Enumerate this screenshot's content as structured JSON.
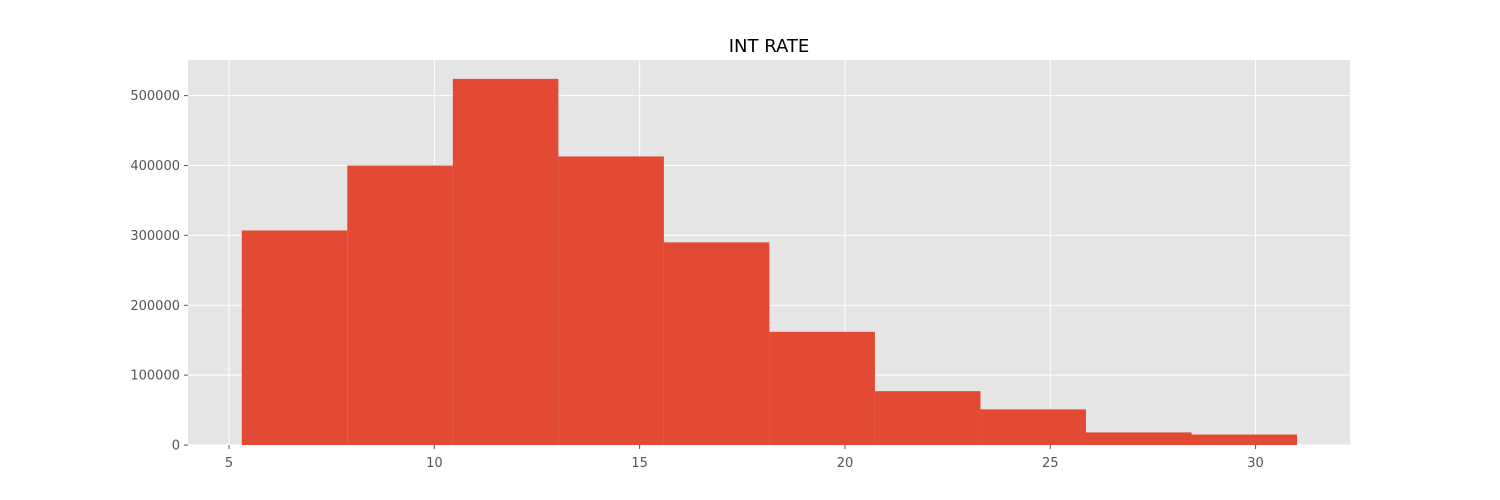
{
  "chart_data": {
    "type": "bar",
    "title": "INT RATE",
    "xlabel": "",
    "ylabel": "",
    "xlim": [
      4.0,
      32.3
    ],
    "ylim": [
      0,
      551000
    ],
    "grid": true,
    "bins": [
      {
        "x0": 5.31,
        "x1": 7.88,
        "count": 307000
      },
      {
        "x0": 7.88,
        "x1": 10.45,
        "count": 400000
      },
      {
        "x0": 10.45,
        "x1": 13.02,
        "count": 524000
      },
      {
        "x0": 13.02,
        "x1": 15.59,
        "count": 413000
      },
      {
        "x0": 15.59,
        "x1": 18.16,
        "count": 290000
      },
      {
        "x0": 18.16,
        "x1": 20.73,
        "count": 162000
      },
      {
        "x0": 20.73,
        "x1": 23.3,
        "count": 77000
      },
      {
        "x0": 23.3,
        "x1": 25.87,
        "count": 51000
      },
      {
        "x0": 25.87,
        "x1": 28.44,
        "count": 18000
      },
      {
        "x0": 28.44,
        "x1": 31.01,
        "count": 15000
      }
    ],
    "x_ticks": [
      5,
      10,
      15,
      20,
      25,
      30
    ],
    "x_tick_labels": [
      "5",
      "10",
      "15",
      "20",
      "25",
      "30"
    ],
    "y_ticks": [
      0,
      100000,
      200000,
      300000,
      400000,
      500000
    ],
    "y_tick_labels": [
      "0",
      "100000",
      "200000",
      "300000",
      "400000",
      "500000"
    ]
  },
  "colors": {
    "bar": "#e24a33",
    "plot_background": "#e5e5e5",
    "grid": "#ffffff",
    "tick": "#555555"
  }
}
